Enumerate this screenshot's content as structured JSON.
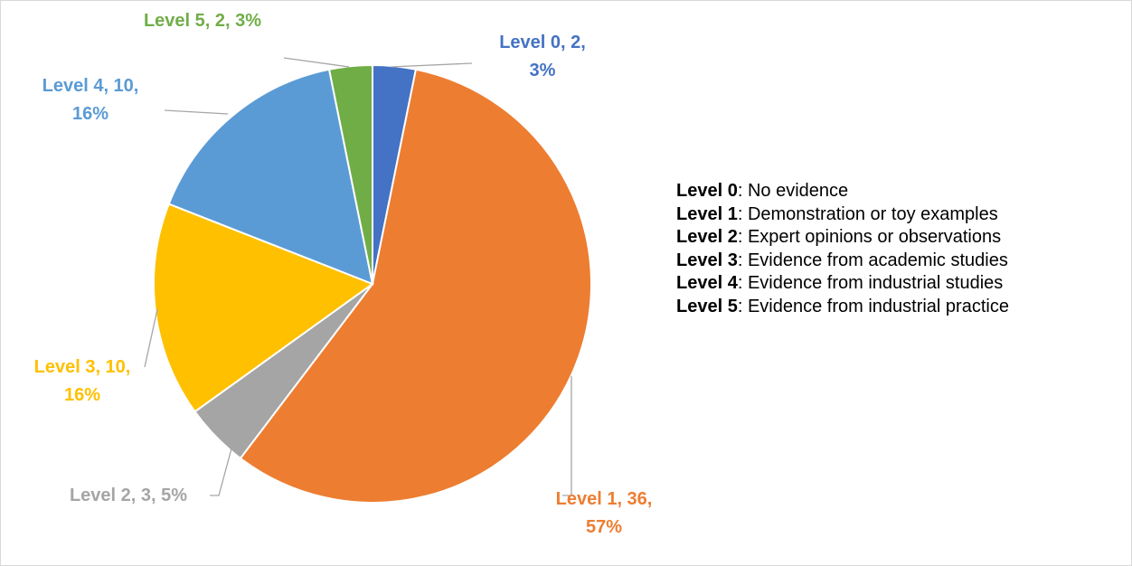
{
  "chart_data": {
    "type": "pie",
    "categories": [
      "Level 0",
      "Level 1",
      "Level 2",
      "Level 3",
      "Level 4",
      "Level 5"
    ],
    "values": [
      2,
      36,
      3,
      10,
      10,
      2
    ],
    "value_labels": [
      "Level 0, 2, 3%",
      "Level 1, 36, 57%",
      "Level 2, 3, 5%",
      "Level 3, 10, 16%",
      "Level 4, 10, 16%",
      "Level 5, 2, 3%"
    ],
    "colors": [
      "#4472c4",
      "#ed7d31",
      "#a5a5a5",
      "#ffc000",
      "#5b9bd5",
      "#70ad47"
    ],
    "category_descriptions": [
      ": No evidence",
      ": Demonstration or toy examples",
      ": Expert opinions or observations",
      ": Evidence from academic studies",
      ": Evidence from industrial studies",
      ": Evidence from industrial practice"
    ],
    "legend": "right"
  }
}
